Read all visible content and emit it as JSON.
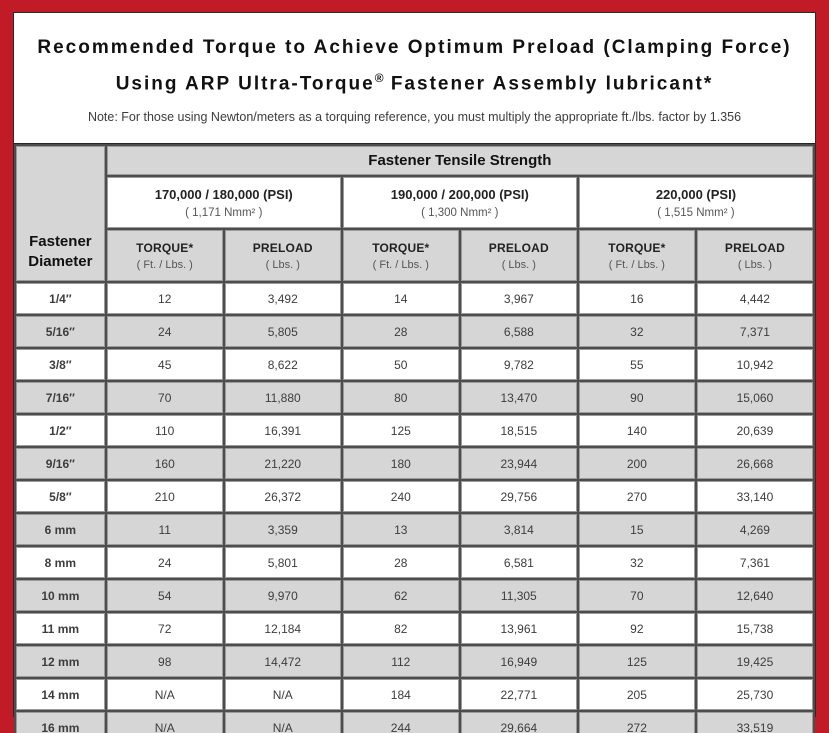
{
  "frame": {
    "border_color": "#c11b27"
  },
  "title": {
    "line1": "Recommended Torque to Achieve Optimum Preload (Clamping Force)",
    "line2_pre": "Using ARP Ultra-Torque",
    "line2_reg": "®",
    "line2_post": " Fastener Assembly lubricant*",
    "note": "Note: For those using Newton/meters as a torquing reference, you must multiply the appropriate ft./lbs. factor by 1.356"
  },
  "table": {
    "corner_header": {
      "line1": "Fastener",
      "line2": "Diameter"
    },
    "tensile_header": "Fastener Tensile Strength",
    "groups": [
      {
        "psi": "170,000 / 180,000 (PSI)",
        "nmm": "( 1,171 Nmm² )"
      },
      {
        "psi": "190,000 / 200,000 (PSI)",
        "nmm": "( 1,300 Nmm² )"
      },
      {
        "psi": "220,000 (PSI)",
        "nmm": "( 1,515 Nmm² )"
      }
    ],
    "col_headers": {
      "torque_label": "TORQUE*",
      "torque_unit": "( Ft. / Lbs. )",
      "preload_label": "PRELOAD",
      "preload_unit": "( Lbs. )"
    },
    "rows": [
      {
        "diameter": "1/4″",
        "values": [
          "12",
          "3,492",
          "14",
          "3,967",
          "16",
          "4,442"
        ]
      },
      {
        "diameter": "5/16″",
        "values": [
          "24",
          "5,805",
          "28",
          "6,588",
          "32",
          "7,371"
        ]
      },
      {
        "diameter": "3/8″",
        "values": [
          "45",
          "8,622",
          "50",
          "9,782",
          "55",
          "10,942"
        ]
      },
      {
        "diameter": "7/16″",
        "values": [
          "70",
          "11,880",
          "80",
          "13,470",
          "90",
          "15,060"
        ]
      },
      {
        "diameter": "1/2″",
        "values": [
          "110",
          "16,391",
          "125",
          "18,515",
          "140",
          "20,639"
        ]
      },
      {
        "diameter": "9/16″",
        "values": [
          "160",
          "21,220",
          "180",
          "23,944",
          "200",
          "26,668"
        ]
      },
      {
        "diameter": "5/8″",
        "values": [
          "210",
          "26,372",
          "240",
          "29,756",
          "270",
          "33,140"
        ]
      },
      {
        "diameter": "6 mm",
        "values": [
          "11",
          "3,359",
          "13",
          "3,814",
          "15",
          "4,269"
        ]
      },
      {
        "diameter": "8 mm",
        "values": [
          "24",
          "5,801",
          "28",
          "6,581",
          "32",
          "7,361"
        ]
      },
      {
        "diameter": "10 mm",
        "values": [
          "54",
          "9,970",
          "62",
          "11,305",
          "70",
          "12,640"
        ]
      },
      {
        "diameter": "11 mm",
        "values": [
          "72",
          "12,184",
          "82",
          "13,961",
          "92",
          "15,738"
        ]
      },
      {
        "diameter": "12 mm",
        "values": [
          "98",
          "14,472",
          "112",
          "16,949",
          "125",
          "19,425"
        ]
      },
      {
        "diameter": "14 mm",
        "values": [
          "N/A",
          "N/A",
          "184",
          "22,771",
          "205",
          "25,730"
        ]
      },
      {
        "diameter": "16 mm",
        "values": [
          "N/A",
          "N/A",
          "244",
          "29,664",
          "272",
          "33,519"
        ]
      }
    ]
  }
}
